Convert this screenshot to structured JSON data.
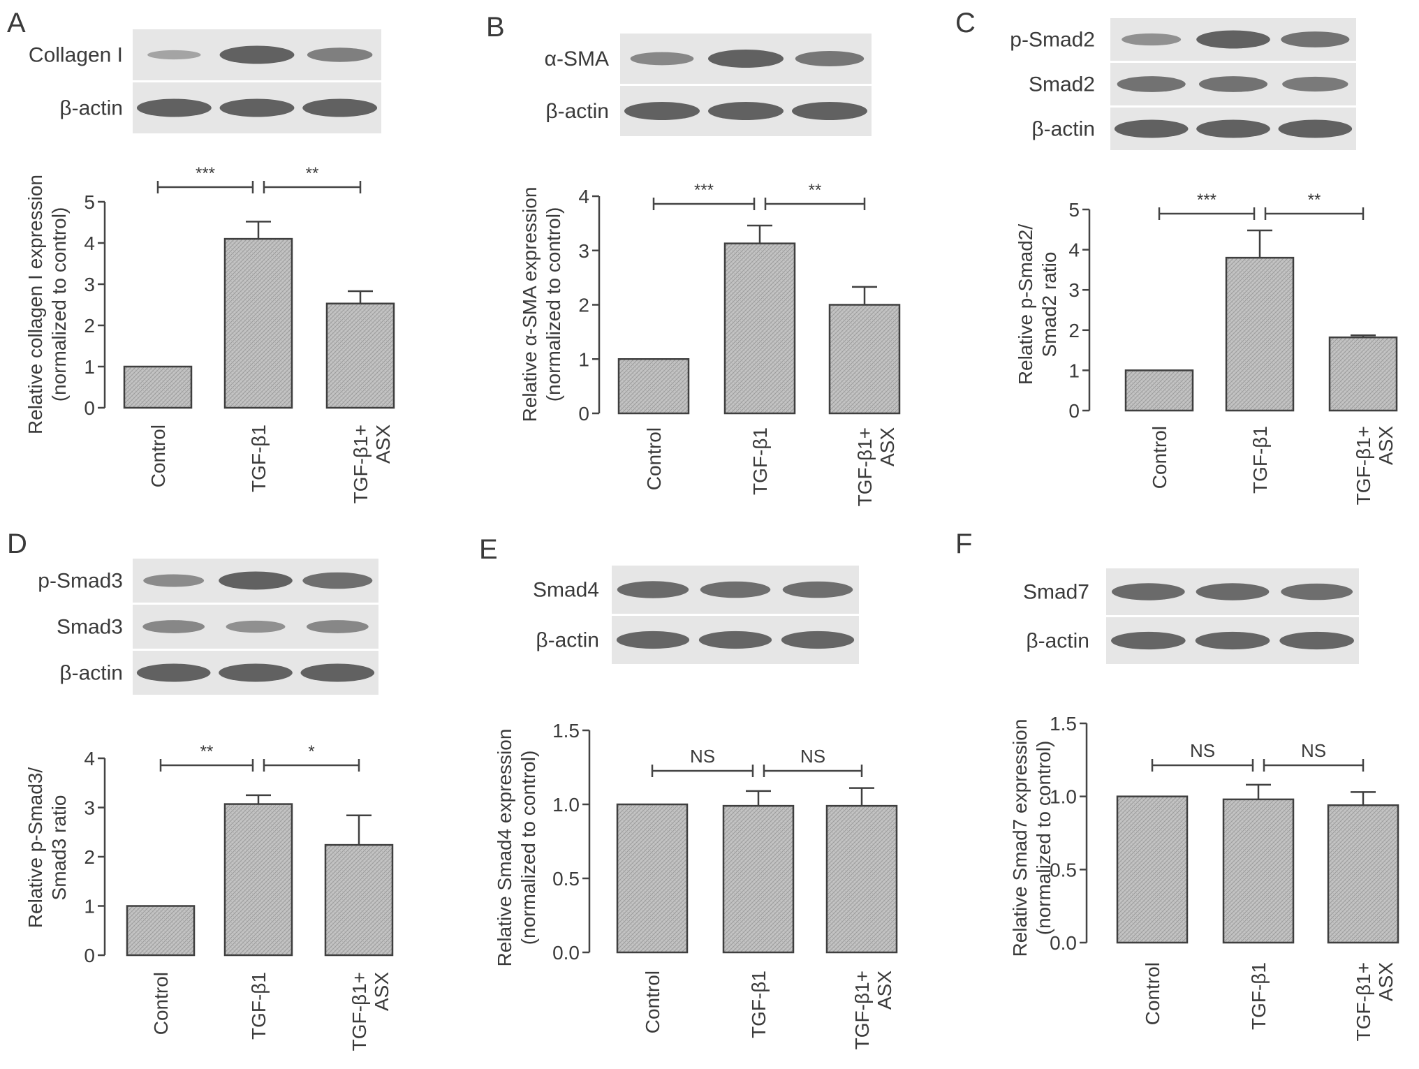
{
  "colors": {
    "text": "#3a3a3a",
    "axis": "#444444",
    "bar_fill": "#c2c2c2",
    "bar_edge": "#3f3f3f",
    "blot_bg": "#e6e6e6",
    "band": "#5a5a5a"
  },
  "panels": [
    {
      "letter": "A",
      "blot": {
        "labels": [
          "Collagen I",
          "β-actin"
        ],
        "intensity": [
          [
            0.2,
            1.0,
            0.65
          ],
          [
            1.0,
            1.0,
            1.0
          ]
        ]
      },
      "chart_data": {
        "type": "bar",
        "categories": [
          "Control",
          "TGF-β1",
          "TGF-β1+\nASX"
        ],
        "values": [
          1.0,
          4.1,
          2.53
        ],
        "errors": [
          0,
          0.42,
          0.3
        ],
        "ylabel": "Relative collagen I expression\n(normalized to control)",
        "ylim": [
          0,
          5
        ],
        "yticks": [
          "0",
          "1",
          "2",
          "3",
          "4",
          "5"
        ],
        "significance": [
          "***",
          "**"
        ],
        "grid": false,
        "legend": "none"
      }
    },
    {
      "letter": "B",
      "blot": {
        "labels": [
          "α-SMA",
          "β-actin"
        ],
        "intensity": [
          [
            0.55,
            1.0,
            0.75
          ],
          [
            1.0,
            1.0,
            1.0
          ]
        ]
      },
      "chart_data": {
        "type": "bar",
        "categories": [
          "Control",
          "TGF-β1",
          "TGF-β1+\nASX"
        ],
        "values": [
          1.0,
          3.13,
          2.0
        ],
        "errors": [
          0,
          0.33,
          0.33
        ],
        "ylabel": "Relative α-SMA expression\n(normalized to control)",
        "ylim": [
          0,
          4
        ],
        "yticks": [
          "0",
          "1",
          "2",
          "3",
          "4"
        ],
        "significance": [
          "***",
          "**"
        ],
        "grid": false,
        "legend": "none"
      }
    },
    {
      "letter": "C",
      "blot": {
        "labels": [
          "p-Smad2",
          "Smad2",
          "β-actin"
        ],
        "intensity": [
          [
            0.45,
            1.0,
            0.8
          ],
          [
            0.8,
            0.8,
            0.7
          ],
          [
            1.0,
            1.0,
            1.0
          ]
        ]
      },
      "chart_data": {
        "type": "bar",
        "categories": [
          "Control",
          "TGF-β1",
          "TGF-β1+\nASX"
        ],
        "values": [
          1.0,
          3.8,
          1.82
        ],
        "errors": [
          0,
          0.68,
          0.05
        ],
        "ylabel": "Relative p-Smad2/\nSmad2 ratio",
        "ylim": [
          0,
          5
        ],
        "yticks": [
          "0",
          "1",
          "2",
          "3",
          "4",
          "5"
        ],
        "significance": [
          "***",
          "**"
        ],
        "grid": false,
        "legend": "none"
      }
    },
    {
      "letter": "D",
      "blot": {
        "labels": [
          "p-Smad3",
          "Smad3",
          "β-actin"
        ],
        "intensity": [
          [
            0.5,
            1.0,
            0.85
          ],
          [
            0.55,
            0.45,
            0.55
          ],
          [
            1.0,
            1.0,
            1.0
          ]
        ]
      },
      "chart_data": {
        "type": "bar",
        "categories": [
          "Control",
          "TGF-β1",
          "TGF-β1+\nASX"
        ],
        "values": [
          1.0,
          3.07,
          2.24
        ],
        "errors": [
          0,
          0.18,
          0.6
        ],
        "ylabel": "Relative p-Smad3/\nSmad3 ratio",
        "ylim": [
          0,
          4
        ],
        "yticks": [
          "0",
          "1",
          "2",
          "3",
          "4"
        ],
        "significance": [
          "**",
          "*"
        ],
        "grid": false,
        "legend": "none"
      }
    },
    {
      "letter": "E",
      "blot": {
        "labels": [
          "Smad4",
          "β-actin"
        ],
        "intensity": [
          [
            0.9,
            0.85,
            0.85
          ],
          [
            0.95,
            0.95,
            0.95
          ]
        ]
      },
      "chart_data": {
        "type": "bar",
        "categories": [
          "Control",
          "TGF-β1",
          "TGF-β1+\nASX"
        ],
        "values": [
          1.0,
          0.99,
          0.99
        ],
        "errors": [
          0,
          0.1,
          0.12
        ],
        "ylabel": "Relative Smad4 expression\n(normalized to control)",
        "ylim": [
          0,
          1.5
        ],
        "yticks": [
          "0.0",
          "0.5",
          "1.0",
          "1.5"
        ],
        "significance": [
          "NS",
          "NS"
        ],
        "grid": false,
        "legend": "none"
      }
    },
    {
      "letter": "F",
      "blot": {
        "labels": [
          "Smad7",
          "β-actin"
        ],
        "intensity": [
          [
            0.9,
            0.9,
            0.85
          ],
          [
            0.95,
            0.95,
            0.95
          ]
        ]
      },
      "chart_data": {
        "type": "bar",
        "categories": [
          "Control",
          "TGF-β1",
          "TGF-β1+\nASX"
        ],
        "values": [
          1.0,
          0.98,
          0.94
        ],
        "errors": [
          0,
          0.1,
          0.09
        ],
        "ylabel": "Relative Smad7 expression\n(normalized to control)",
        "ylim": [
          0,
          1.5
        ],
        "yticks": [
          "0.0",
          "0.5",
          "1.0",
          "1.5"
        ],
        "significance": [
          "NS",
          "NS"
        ],
        "grid": false,
        "legend": "none"
      }
    }
  ]
}
